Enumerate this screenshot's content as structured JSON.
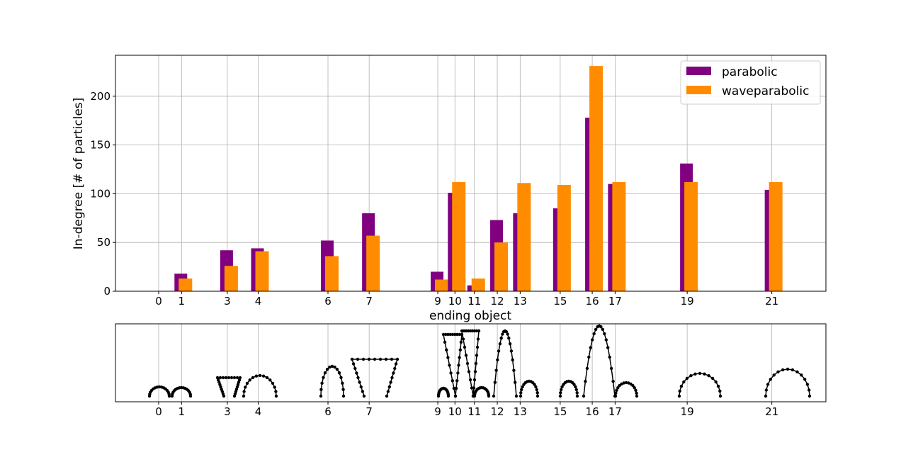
{
  "chart_data": [
    {
      "type": "bar",
      "xlabel": "ending object",
      "ylabel": "In-degree [# of particles]",
      "ylim": [
        0,
        242
      ],
      "yticks": [
        0,
        50,
        100,
        150,
        200
      ],
      "grid": true,
      "legend_position": "top-right",
      "categories": [
        "0",
        "1",
        "3",
        "4",
        "6",
        "7",
        "9",
        "10",
        "11",
        "12",
        "13",
        "15",
        "16",
        "17",
        "19",
        "21"
      ],
      "x": [
        0,
        1,
        3,
        4.35,
        7.4,
        9.2,
        12.2,
        12.95,
        13.8,
        14.8,
        15.8,
        17.55,
        18.95,
        19.95,
        23.1,
        26.8
      ],
      "series": [
        {
          "name": "parabolic",
          "color": "#800080",
          "values": [
            0,
            18,
            42,
            44,
            52,
            80,
            20,
            101,
            6,
            73,
            80,
            85,
            178,
            110,
            131,
            104
          ]
        },
        {
          "name": "waveparabolic",
          "color": "#ff8c00",
          "values": [
            0,
            13,
            26,
            41,
            36,
            57,
            12,
            112,
            13,
            50,
            111,
            109,
            231,
            112,
            112,
            112
          ]
        }
      ]
    },
    {
      "type": "scatter",
      "description_labels": [
        "0",
        "1",
        "3",
        "4",
        "6",
        "7",
        "9",
        "10",
        "11",
        "12",
        "13",
        "15",
        "16",
        "17",
        "19",
        "21"
      ],
      "x": [
        0,
        1,
        3,
        4.35,
        7.4,
        9.2,
        12.2,
        12.95,
        13.8,
        14.8,
        15.8,
        17.55,
        18.95,
        19.95,
        23.1,
        26.8
      ],
      "grid": true,
      "marker_color": "#000000"
    }
  ]
}
